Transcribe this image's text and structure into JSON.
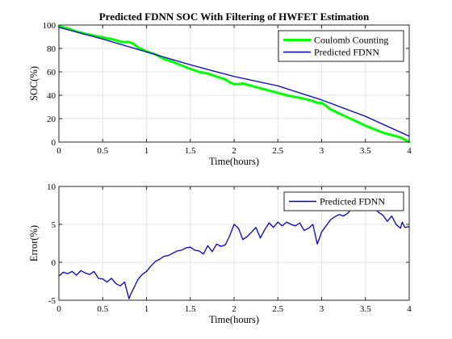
{
  "chart_data": [
    {
      "type": "line",
      "title": "Predicted FDNN SOC With Filtering of HWFET Estimation",
      "xlabel": "Time(hours)",
      "ylabel": "SOC(%)",
      "xlim": [
        0,
        4
      ],
      "ylim": [
        0,
        100
      ],
      "xticks": [
        "0",
        "0.5",
        "1",
        "1.5",
        "2",
        "2.5",
        "3",
        "3.5",
        "4"
      ],
      "yticks": [
        "0",
        "20",
        "40",
        "60",
        "80",
        "100"
      ],
      "grid": true,
      "legend": "top-right",
      "series": [
        {
          "name": "Coulomb Counting",
          "color": "#00ff00",
          "x": [
            0,
            0.1,
            0.2,
            0.3,
            0.4,
            0.5,
            0.6,
            0.65,
            0.72,
            0.8,
            0.85,
            0.9,
            1.0,
            1.1,
            1.2,
            1.3,
            1.4,
            1.5,
            1.6,
            1.7,
            1.8,
            1.9,
            1.95,
            2.0,
            2.05,
            2.1,
            2.2,
            2.3,
            2.4,
            2.5,
            2.6,
            2.7,
            2.8,
            2.9,
            2.95,
            3.0,
            3.05,
            3.1,
            3.2,
            3.3,
            3.4,
            3.5,
            3.6,
            3.7,
            3.8,
            3.9,
            3.95,
            4.0
          ],
          "y": [
            99,
            97,
            94.5,
            92.5,
            91,
            89.5,
            88,
            87,
            85.5,
            85.5,
            84,
            81,
            77.5,
            75,
            71,
            68.5,
            65.5,
            62.5,
            60,
            58.5,
            56,
            53.5,
            51,
            49.5,
            49.5,
            50,
            48,
            46,
            44,
            42,
            40,
            38.5,
            37,
            35,
            33.5,
            33.5,
            31,
            28,
            24.5,
            21,
            17.5,
            14,
            11,
            8,
            6,
            4,
            2,
            0
          ]
        },
        {
          "name": "Predicted FDNN",
          "color": "#0000c8",
          "x": [
            0,
            0.5,
            1.0,
            1.5,
            1.8,
            2.0,
            2.5,
            3.0,
            3.5,
            4.0
          ],
          "y": [
            98,
            88,
            77,
            66,
            60,
            56,
            48,
            36,
            22,
            5
          ]
        }
      ]
    },
    {
      "type": "line",
      "title": "",
      "xlabel": "Time(hours)",
      "ylabel": "Error(%)",
      "xlim": [
        0,
        4
      ],
      "ylim": [
        -5,
        10
      ],
      "xticks": [
        "0",
        "0.5",
        "1",
        "1.5",
        "2",
        "2.5",
        "3",
        "3.5",
        "4"
      ],
      "yticks": [
        "-5",
        "0",
        "5",
        "10"
      ],
      "grid": true,
      "legend": "top-right",
      "series": [
        {
          "name": "Predicted FDNN",
          "color": "#0000c8",
          "x": [
            0,
            0.05,
            0.1,
            0.15,
            0.2,
            0.25,
            0.3,
            0.35,
            0.4,
            0.45,
            0.5,
            0.55,
            0.6,
            0.65,
            0.7,
            0.75,
            0.8,
            0.82,
            0.85,
            0.9,
            0.95,
            1.0,
            1.05,
            1.1,
            1.15,
            1.2,
            1.25,
            1.3,
            1.35,
            1.4,
            1.45,
            1.5,
            1.55,
            1.6,
            1.65,
            1.7,
            1.75,
            1.8,
            1.85,
            1.9,
            1.95,
            2.0,
            2.05,
            2.1,
            2.15,
            2.2,
            2.25,
            2.3,
            2.35,
            2.4,
            2.45,
            2.5,
            2.55,
            2.6,
            2.65,
            2.7,
            2.75,
            2.8,
            2.85,
            2.9,
            2.95,
            3.0,
            3.05,
            3.1,
            3.15,
            3.2,
            3.25,
            3.3,
            3.35,
            3.4,
            3.45,
            3.5,
            3.55,
            3.6,
            3.65,
            3.7,
            3.75,
            3.8,
            3.85,
            3.9,
            3.92,
            3.95,
            4.0
          ],
          "y": [
            -1.8,
            -1.3,
            -1.5,
            -1.2,
            -1.7,
            -1.1,
            -1.4,
            -1.6,
            -1.2,
            -2.1,
            -2.2,
            -2.6,
            -2.1,
            -2.8,
            -3.1,
            -2.6,
            -4.8,
            -4.2,
            -3.5,
            -2.3,
            -1.6,
            -1.2,
            -0.5,
            0.1,
            0.4,
            0.8,
            0.9,
            1.2,
            1.5,
            1.6,
            1.9,
            2.0,
            1.6,
            1.5,
            1.1,
            2.2,
            1.4,
            2.4,
            2.1,
            2.3,
            3.5,
            5.0,
            4.5,
            3.0,
            3.4,
            4.0,
            4.6,
            3.2,
            4.3,
            5.2,
            4.6,
            5.3,
            4.8,
            5.3,
            5.0,
            4.8,
            5.2,
            4.2,
            4.5,
            5.0,
            2.4,
            4.0,
            4.8,
            5.6,
            6.0,
            6.3,
            6.1,
            6.5,
            7.2,
            7.1,
            6.8,
            7.2,
            7.0,
            7.1,
            6.6,
            6.2,
            5.4,
            6.1,
            5.0,
            4.5,
            5.3,
            4.6,
            4.7
          ]
        }
      ]
    }
  ]
}
